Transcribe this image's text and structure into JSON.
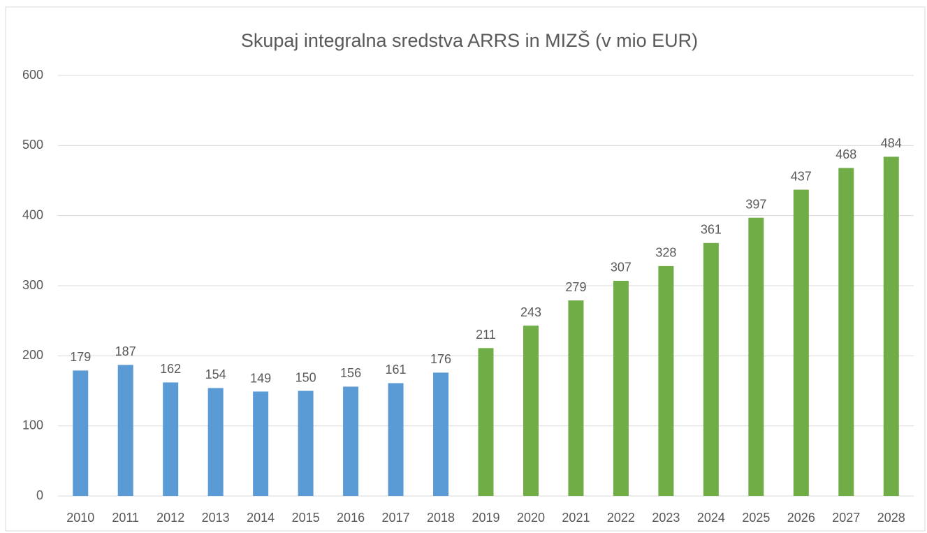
{
  "chart_data": {
    "type": "bar",
    "title": "Skupaj integralna sredstva ARRS in MIZŠ (v mio EUR)",
    "categories": [
      "2010",
      "2011",
      "2012",
      "2013",
      "2014",
      "2015",
      "2016",
      "2017",
      "2018",
      "2019",
      "2020",
      "2021",
      "2022",
      "2023",
      "2024",
      "2025",
      "2026",
      "2027",
      "2028"
    ],
    "values": [
      179,
      187,
      162,
      154,
      149,
      150,
      156,
      161,
      176,
      211,
      243,
      279,
      307,
      328,
      361,
      397,
      437,
      468,
      484
    ],
    "colors": [
      "#5b9bd5",
      "#5b9bd5",
      "#5b9bd5",
      "#5b9bd5",
      "#5b9bd5",
      "#5b9bd5",
      "#5b9bd5",
      "#5b9bd5",
      "#5b9bd5",
      "#70ad47",
      "#70ad47",
      "#70ad47",
      "#70ad47",
      "#70ad47",
      "#70ad47",
      "#70ad47",
      "#70ad47",
      "#70ad47",
      "#70ad47"
    ],
    "ylim": [
      0,
      600
    ],
    "yticks": [
      0,
      100,
      200,
      300,
      400,
      500,
      600
    ],
    "grid": true
  }
}
